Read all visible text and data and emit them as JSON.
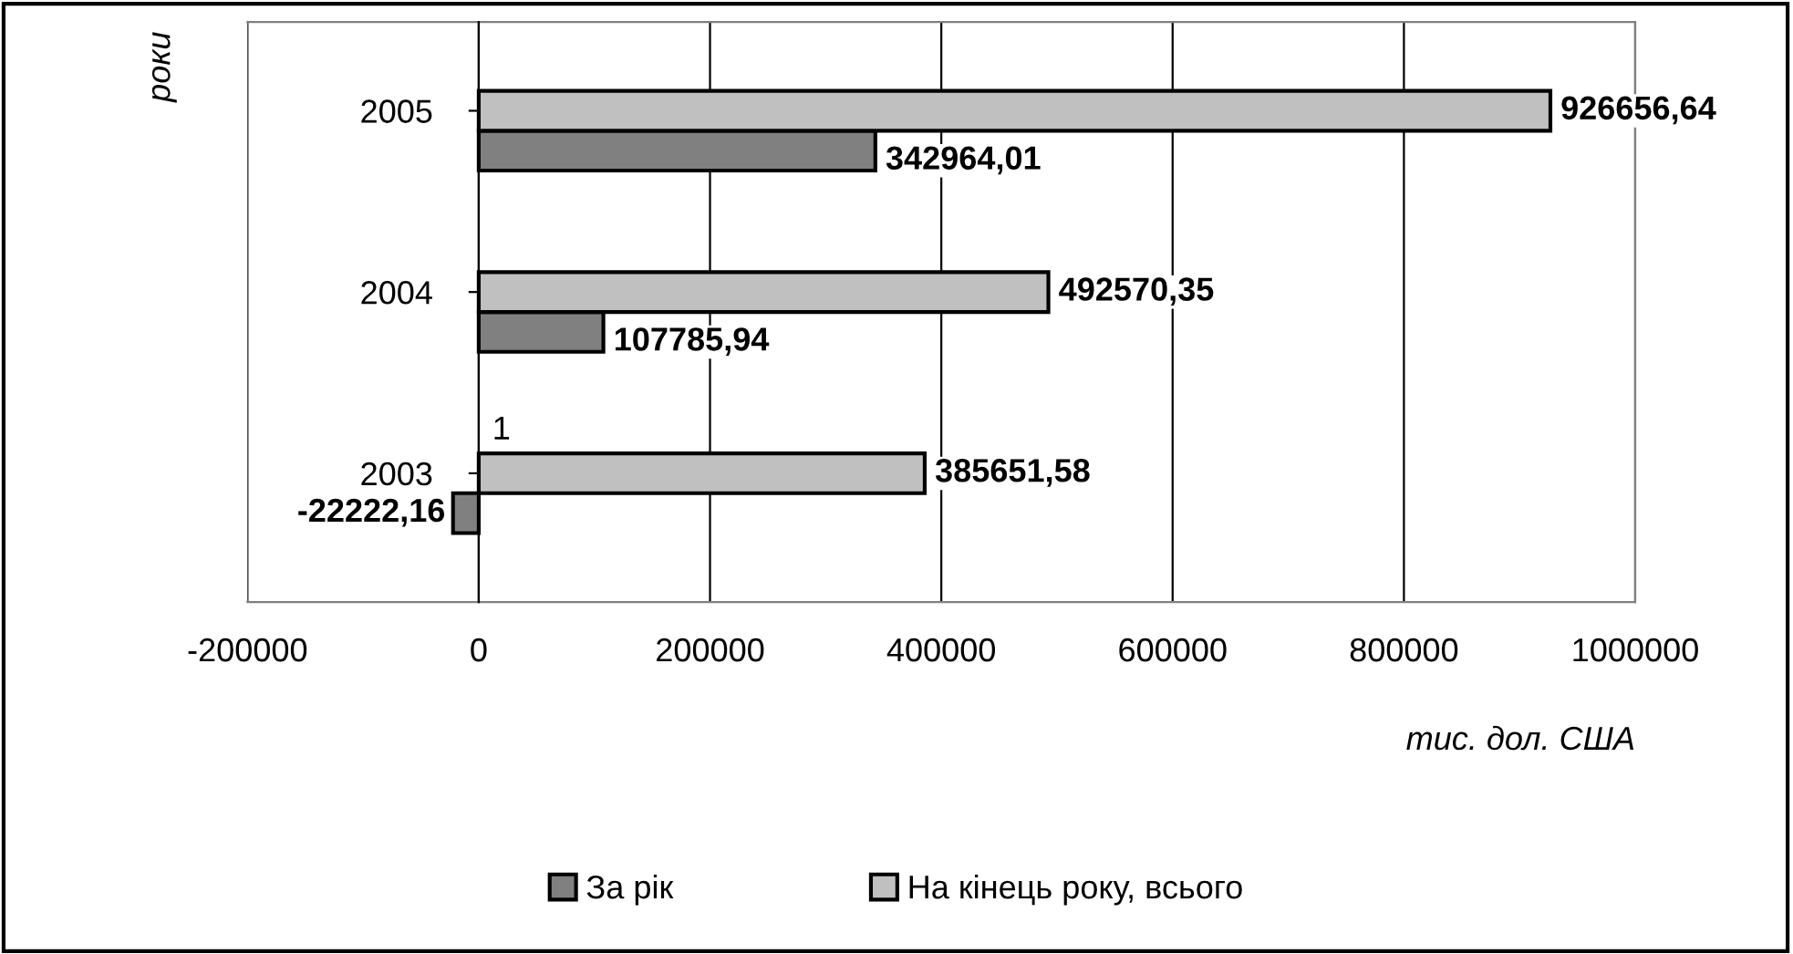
{
  "chart_data": {
    "type": "bar",
    "orientation": "horizontal",
    "xlabel": "тис. дол. США",
    "ylabel": "роки",
    "categories": [
      "2005",
      "2004",
      "2003"
    ],
    "series": [
      {
        "name": "За рік",
        "color": "#808080",
        "values": [
          342964.01,
          107785.94,
          -22222.16
        ],
        "value_labels": [
          "342964,01",
          "107785,94",
          "-22222,16"
        ]
      },
      {
        "name": "На кінець року, всього",
        "color": "#c0c0c0",
        "values": [
          926656.64,
          492570.35,
          385651.58
        ],
        "value_labels": [
          "926656,64",
          "492570,35",
          "385651,58"
        ]
      }
    ],
    "xlim": [
      -200000,
      1000000
    ],
    "xticks": [
      -200000,
      0,
      200000,
      400000,
      600000,
      800000,
      1000000
    ],
    "grid": "x",
    "legend": "bottom",
    "annotations": [
      "1"
    ]
  }
}
